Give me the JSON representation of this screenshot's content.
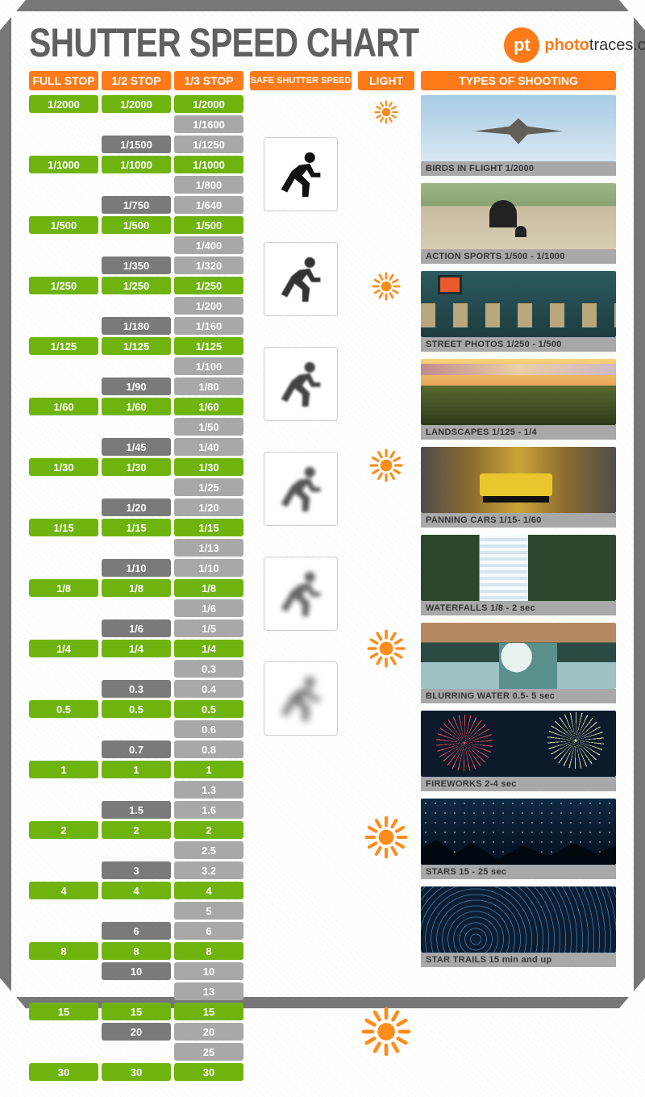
{
  "title": "SHUTTER SPEED CHART",
  "logo": {
    "badge": "pt",
    "brand": "photo",
    "brand2": "traces",
    "tld": ".com"
  },
  "headers": {
    "full": "FULL STOP",
    "half": "1/2 STOP",
    "third": "1/3 STOP",
    "safe": "SAFE SHUTTER SPEED",
    "light": "LIGHT",
    "types": "TYPES OF SHOOTING"
  },
  "columns": {
    "full": [
      {
        "v": "1/2000",
        "c": "g"
      },
      {
        "c": "sp"
      },
      {
        "c": "sp"
      },
      {
        "v": "1/1000",
        "c": "g"
      },
      {
        "c": "sp"
      },
      {
        "c": "sp"
      },
      {
        "v": "1/500",
        "c": "g"
      },
      {
        "c": "sp"
      },
      {
        "c": "sp"
      },
      {
        "v": "1/250",
        "c": "g"
      },
      {
        "c": "sp"
      },
      {
        "c": "sp"
      },
      {
        "v": "1/125",
        "c": "g"
      },
      {
        "c": "sp"
      },
      {
        "c": "sp"
      },
      {
        "v": "1/60",
        "c": "g"
      },
      {
        "c": "sp"
      },
      {
        "c": "sp"
      },
      {
        "v": "1/30",
        "c": "g"
      },
      {
        "c": "sp"
      },
      {
        "c": "sp"
      },
      {
        "v": "1/15",
        "c": "g"
      },
      {
        "c": "sp"
      },
      {
        "c": "sp"
      },
      {
        "v": "1/8",
        "c": "g"
      },
      {
        "c": "sp"
      },
      {
        "c": "sp"
      },
      {
        "v": "1/4",
        "c": "g"
      },
      {
        "c": "sp"
      },
      {
        "c": "sp"
      },
      {
        "v": "0.5",
        "c": "g"
      },
      {
        "c": "sp"
      },
      {
        "c": "sp"
      },
      {
        "v": "1",
        "c": "g"
      },
      {
        "c": "sp"
      },
      {
        "c": "sp"
      },
      {
        "v": "2",
        "c": "g"
      },
      {
        "c": "sp"
      },
      {
        "c": "sp"
      },
      {
        "v": "4",
        "c": "g"
      },
      {
        "c": "sp"
      },
      {
        "c": "sp"
      },
      {
        "v": "8",
        "c": "g"
      },
      {
        "c": "sp"
      },
      {
        "c": "sp"
      },
      {
        "v": "15",
        "c": "g"
      },
      {
        "c": "sp"
      },
      {
        "c": "sp"
      },
      {
        "v": "30",
        "c": "g"
      }
    ],
    "half": [
      {
        "v": "1/2000",
        "c": "g"
      },
      {
        "c": "sp"
      },
      {
        "v": "1/1500",
        "c": "d"
      },
      {
        "v": "1/1000",
        "c": "g"
      },
      {
        "c": "sp"
      },
      {
        "v": "1/750",
        "c": "d"
      },
      {
        "v": "1/500",
        "c": "g"
      },
      {
        "c": "sp"
      },
      {
        "v": "1/350",
        "c": "d"
      },
      {
        "v": "1/250",
        "c": "g"
      },
      {
        "c": "sp"
      },
      {
        "v": "1/180",
        "c": "d"
      },
      {
        "v": "1/125",
        "c": "g"
      },
      {
        "c": "sp"
      },
      {
        "v": "1/90",
        "c": "d"
      },
      {
        "v": "1/60",
        "c": "g"
      },
      {
        "c": "sp"
      },
      {
        "v": "1/45",
        "c": "d"
      },
      {
        "v": "1/30",
        "c": "g"
      },
      {
        "c": "sp"
      },
      {
        "v": "1/20",
        "c": "d"
      },
      {
        "v": "1/15",
        "c": "g"
      },
      {
        "c": "sp"
      },
      {
        "v": "1/10",
        "c": "d"
      },
      {
        "v": "1/8",
        "c": "g"
      },
      {
        "c": "sp"
      },
      {
        "v": "1/6",
        "c": "d"
      },
      {
        "v": "1/4",
        "c": "g"
      },
      {
        "c": "sp"
      },
      {
        "v": "0.3",
        "c": "d"
      },
      {
        "v": "0.5",
        "c": "g"
      },
      {
        "c": "sp"
      },
      {
        "v": "0.7",
        "c": "d"
      },
      {
        "v": "1",
        "c": "g"
      },
      {
        "c": "sp"
      },
      {
        "v": "1.5",
        "c": "d"
      },
      {
        "v": "2",
        "c": "g"
      },
      {
        "c": "sp"
      },
      {
        "v": "3",
        "c": "d"
      },
      {
        "v": "4",
        "c": "g"
      },
      {
        "c": "sp"
      },
      {
        "v": "6",
        "c": "d"
      },
      {
        "v": "8",
        "c": "g"
      },
      {
        "v": "10",
        "c": "d"
      },
      {
        "c": "sp"
      },
      {
        "v": "15",
        "c": "g"
      },
      {
        "v": "20",
        "c": "d"
      },
      {
        "c": "sp"
      },
      {
        "v": "30",
        "c": "g"
      }
    ],
    "third": [
      {
        "v": "1/2000",
        "c": "g"
      },
      {
        "v": "1/1600",
        "c": "l"
      },
      {
        "v": "1/1250",
        "c": "l"
      },
      {
        "v": "1/1000",
        "c": "g"
      },
      {
        "v": "1/800",
        "c": "l"
      },
      {
        "v": "1/640",
        "c": "l"
      },
      {
        "v": "1/500",
        "c": "g"
      },
      {
        "v": "1/400",
        "c": "l"
      },
      {
        "v": "1/320",
        "c": "l"
      },
      {
        "v": "1/250",
        "c": "g"
      },
      {
        "v": "1/200",
        "c": "l"
      },
      {
        "v": "1/160",
        "c": "l"
      },
      {
        "v": "1/125",
        "c": "g"
      },
      {
        "v": "1/100",
        "c": "l"
      },
      {
        "v": "1/80",
        "c": "l"
      },
      {
        "v": "1/60",
        "c": "g"
      },
      {
        "v": "1/50",
        "c": "l"
      },
      {
        "v": "1/40",
        "c": "l"
      },
      {
        "v": "1/30",
        "c": "g"
      },
      {
        "v": "1/25",
        "c": "l"
      },
      {
        "v": "1/20",
        "c": "l"
      },
      {
        "v": "1/15",
        "c": "g"
      },
      {
        "v": "1/13",
        "c": "l"
      },
      {
        "v": "1/10",
        "c": "l"
      },
      {
        "v": "1/8",
        "c": "g"
      },
      {
        "v": "1/6",
        "c": "l"
      },
      {
        "v": "1/5",
        "c": "l"
      },
      {
        "v": "1/4",
        "c": "g"
      },
      {
        "v": "0.3",
        "c": "l"
      },
      {
        "v": "0.4",
        "c": "l"
      },
      {
        "v": "0.5",
        "c": "g"
      },
      {
        "v": "0.6",
        "c": "l"
      },
      {
        "v": "0.8",
        "c": "l"
      },
      {
        "v": "1",
        "c": "g"
      },
      {
        "v": "1.3",
        "c": "l"
      },
      {
        "v": "1.6",
        "c": "l"
      },
      {
        "v": "2",
        "c": "g"
      },
      {
        "v": "2.5",
        "c": "l"
      },
      {
        "v": "3.2",
        "c": "l"
      },
      {
        "v": "4",
        "c": "g"
      },
      {
        "v": "5",
        "c": "l"
      },
      {
        "v": "6",
        "c": "l"
      },
      {
        "v": "8",
        "c": "g"
      },
      {
        "v": "10",
        "c": "l"
      },
      {
        "v": "13",
        "c": "l"
      },
      {
        "v": "15",
        "c": "g"
      },
      {
        "v": "20",
        "c": "l"
      },
      {
        "v": "25",
        "c": "l"
      },
      {
        "v": "30",
        "c": "g"
      }
    ]
  },
  "runners": [
    {
      "blur": 0,
      "color": "#111"
    },
    {
      "blur": 0.6,
      "color": "#333"
    },
    {
      "blur": 1.2,
      "color": "#444"
    },
    {
      "blur": 2.0,
      "color": "#555"
    },
    {
      "blur": 3.0,
      "color": "#666"
    },
    {
      "blur": 4.5,
      "color": "#777"
    }
  ],
  "suns": [
    {
      "size": 30
    },
    {
      "size": 36
    },
    {
      "size": 42
    },
    {
      "size": 48
    },
    {
      "size": 54
    },
    {
      "size": 62
    }
  ],
  "shots": [
    {
      "cls": "birds",
      "cap": "BIRDS IN FLIGHT 1/2000"
    },
    {
      "cls": "sports",
      "cap": "ACTION SPORTS 1/500 - 1/1000"
    },
    {
      "cls": "street",
      "cap": "STREET PHOTOS 1/250 - 1/500"
    },
    {
      "cls": "landscape",
      "cap": "LANDSCAPES 1/125 - 1/4"
    },
    {
      "cls": "panning",
      "cap": "PANNING CARS 1/15- 1/60"
    },
    {
      "cls": "waterfall",
      "cap": "WATERFALLS 1/8 - 2 sec"
    },
    {
      "cls": "blurwater",
      "cap": "BLURRING WATER 0.5- 5 sec"
    },
    {
      "cls": "fireworks",
      "cap": "FIREWORKS  2-4 sec"
    },
    {
      "cls": "stars",
      "cap": "STARS  15 - 25 sec"
    },
    {
      "cls": "startrails",
      "cap": "STAR TRAILS  15 min and up"
    }
  ],
  "colors": {
    "accent": "#ff7a18",
    "green": "#6fb40e",
    "gray_dark": "#7a7a7a",
    "gray_light": "#a8a8a8"
  }
}
